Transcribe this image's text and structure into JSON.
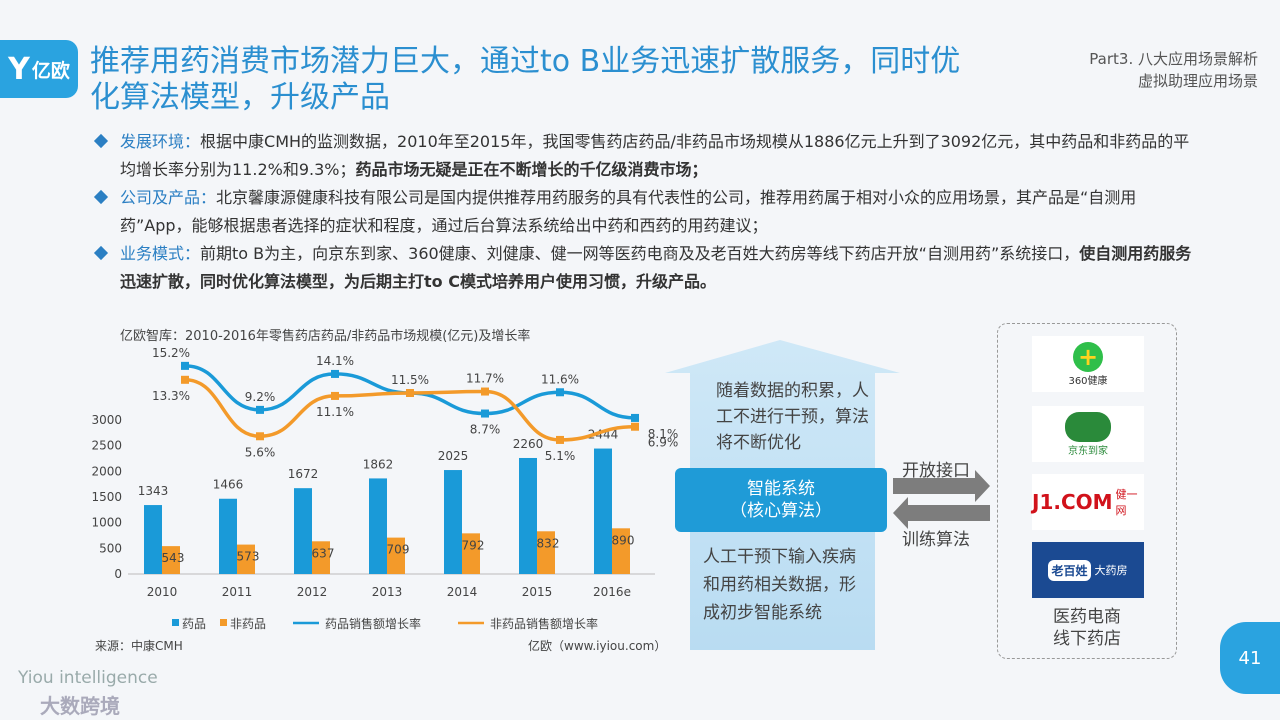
{
  "header": {
    "logo_text": "亿欧",
    "title": "推荐用药消费市场潜力巨大，通过to B业务迅速扩散服务，同时优化算法模型，升级产品",
    "part_line1": "Part3. 八大应用场景解析",
    "part_line2": "虚拟助理应用场景"
  },
  "bullets": [
    {
      "label": "发展环境：",
      "text": "根据中康CMH的监测数据，2010年至2015年，我国零售药店药品/非药品市场规模从1886亿元上升到了3092亿元，其中药品和非药品的平均增长率分别为11.2%和9.3%；",
      "bold": "药品市场无疑是正在不断增长的千亿级消费市场；"
    },
    {
      "label": "公司及产品：",
      "text": "北京馨康源健康科技有限公司是国内提供推荐用药服务的具有代表性的公司，推荐用药属于相对小众的应用场景，其产品是“自测用药”App，能够根据患者选择的症状和程度，通过后台算法系统给出中药和西药的用药建议；",
      "bold": ""
    },
    {
      "label": "业务模式：",
      "text": "前期to B为主，向京东到家、360健康、刘健康、健一网等医药电商及及老百姓大药房等线下药店开放“自测用药”系统接口，",
      "bold": "使自测用药服务迅速扩散，同时优化算法模型，为后期主打to C模式培养用户使用习惯，升级产品。"
    }
  ],
  "chart_data": {
    "type": "bar",
    "title": "亿欧智库：2010-2016年零售药店药品/非药品市场规模(亿元)及增长率",
    "categories": [
      "2010",
      "2011",
      "2012",
      "2013",
      "2014",
      "2015",
      "2016e"
    ],
    "series": [
      {
        "name": "药品",
        "type": "bar",
        "values": [
          1343,
          1466,
          1672,
          1862,
          2025,
          2260,
          2444
        ],
        "color": "#1a9ad8"
      },
      {
        "name": "非药品",
        "type": "bar",
        "values": [
          543,
          573,
          637,
          709,
          792,
          832,
          890
        ],
        "color": "#f39a2a"
      },
      {
        "name": "药品销售额增长率",
        "type": "line",
        "values": [
          15.2,
          9.2,
          14.1,
          11.5,
          8.7,
          11.6,
          8.1
        ],
        "labels": [
          "15.2%",
          "9.2%",
          "14.1%",
          "11.5%",
          "8.7%",
          "11.6%",
          "8.1%"
        ],
        "color": "#1a9ad8"
      },
      {
        "name": "非药品销售额增长率",
        "type": "line",
        "values": [
          13.3,
          5.6,
          11.1,
          11.5,
          11.7,
          5.1,
          6.9
        ],
        "labels": [
          "13.3%",
          "5.6%",
          "11.1%",
          "",
          "11.7%",
          "5.1%",
          "6.9%"
        ],
        "color": "#f39a2a"
      }
    ],
    "yticks": [
      "0",
      "500",
      "1000",
      "1500",
      "2000",
      "2500",
      "3000"
    ],
    "ylim": [
      0,
      3000
    ],
    "legend_position": "bottom",
    "source": "来源：中康CMH",
    "credit": "亿欧（www.iyiou.com）"
  },
  "diagram": {
    "arrow_text": "随着数据的积累，人工不进行干预，算法将不断优化",
    "core_line1": "智能系统",
    "core_line2": "（核心算法）",
    "bottom_text": "人工干预下输入疾病和用药相关数据，形成初步智能系统",
    "open_api": "开放接口",
    "train_algo": "训练算法",
    "panel_caption_line1": "医药电商",
    "panel_caption_line2": "线下药店",
    "stores": [
      {
        "name": "360健康",
        "icon": "plus-circle-icon"
      },
      {
        "name": "京东到家",
        "icon": "dog-mascot-icon"
      },
      {
        "name": "J1.COM",
        "prefix": "健一网"
      },
      {
        "name": "老百姓",
        "suffix": "大药房"
      }
    ]
  },
  "footer": {
    "brand1": "Yiou intelligence",
    "brand2": "大数跨境",
    "page": "41"
  },
  "colors": {
    "accent": "#2aa3e0",
    "orange": "#f39a2a",
    "blue_dark": "#2b7fc3"
  }
}
